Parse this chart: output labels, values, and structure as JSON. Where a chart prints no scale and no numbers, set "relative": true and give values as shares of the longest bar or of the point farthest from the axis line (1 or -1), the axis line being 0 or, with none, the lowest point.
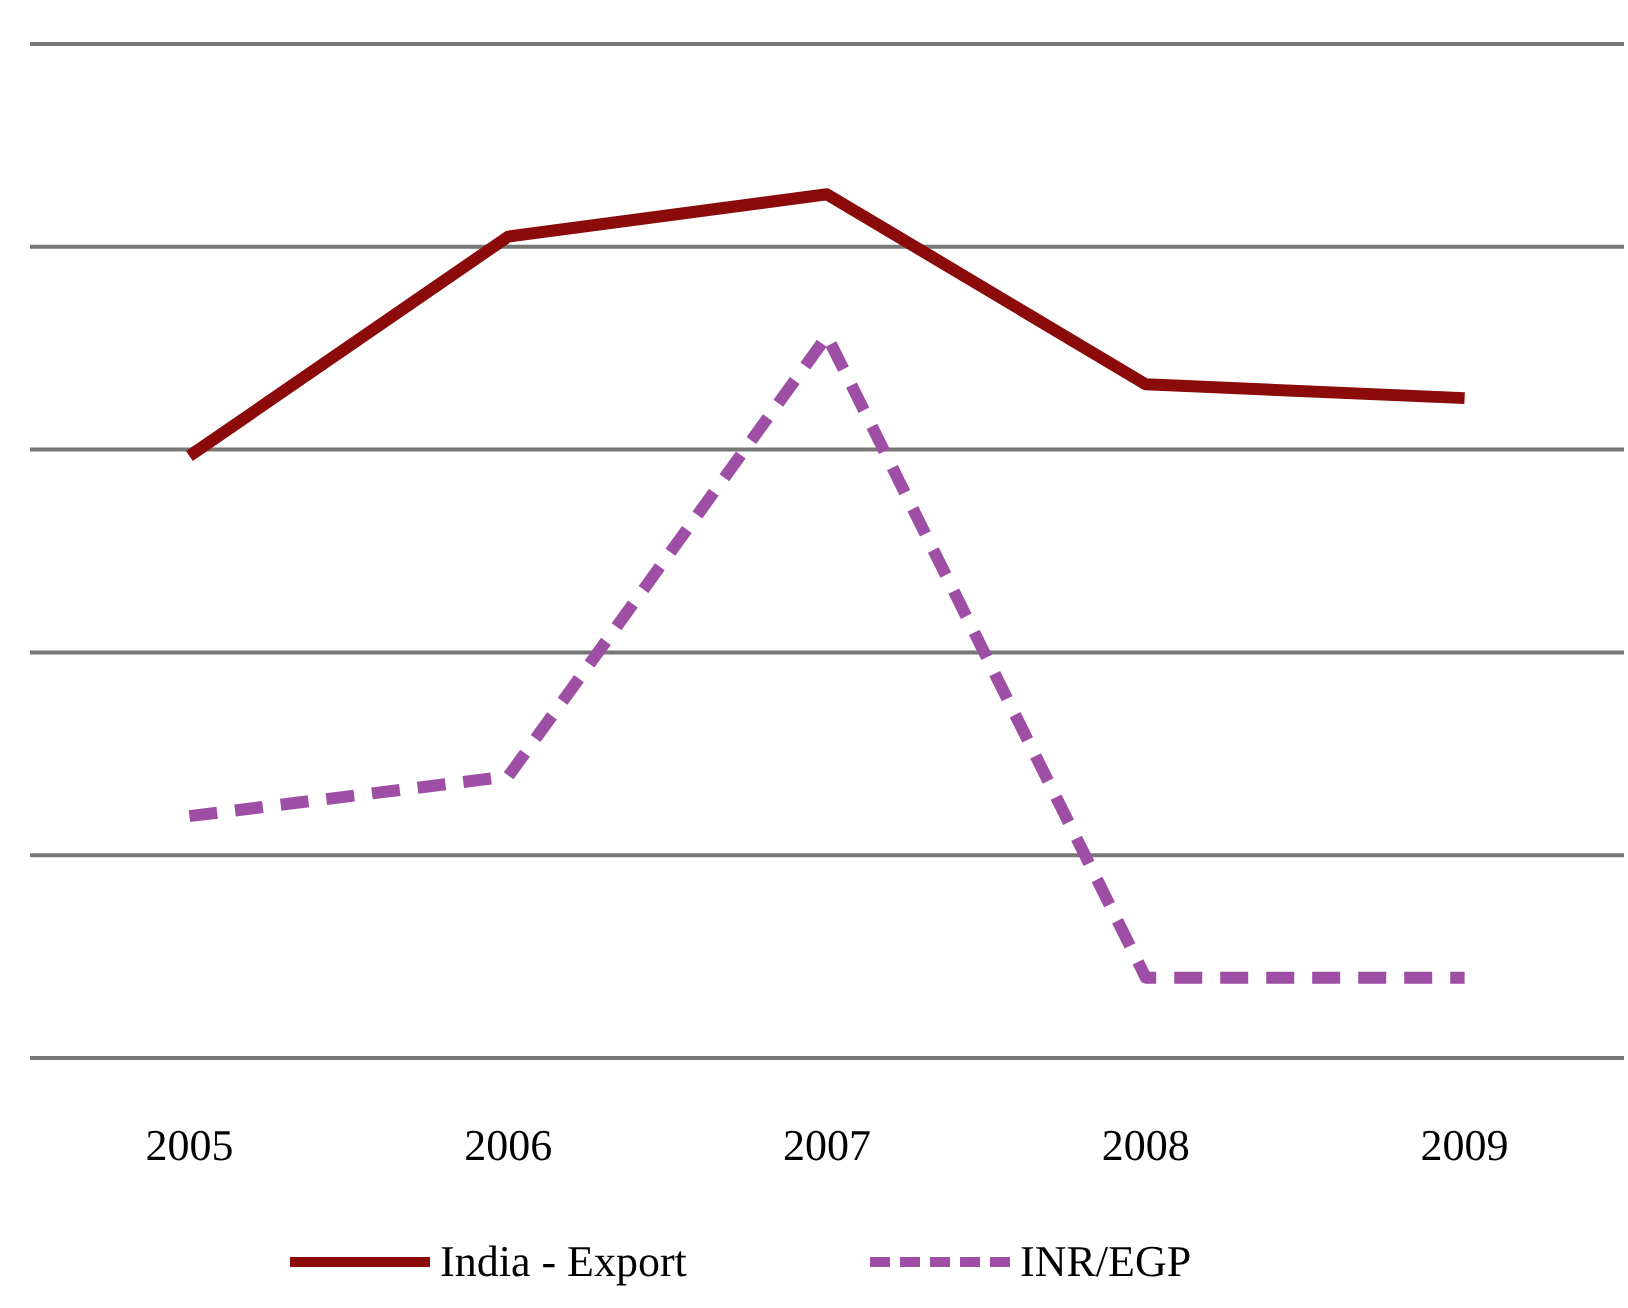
{
  "chart_data": {
    "type": "line",
    "relative": true,
    "categories": [
      "2005",
      "2006",
      "2007",
      "2008",
      "2009"
    ],
    "series": [
      {
        "name": "India - Export",
        "color": "#8b0a0a",
        "line_style": "solid",
        "values": [
          0.697,
          0.951,
          1,
          0.78,
          0.764
        ]
      },
      {
        "name": "INR/EGP",
        "color": "#9e4fa5",
        "line_style": "dashed",
        "values": [
          0.28,
          0.326,
          0.836,
          0.093,
          0.093
        ]
      }
    ],
    "grid": "y",
    "legend": "bottom",
    "marker": "none"
  }
}
